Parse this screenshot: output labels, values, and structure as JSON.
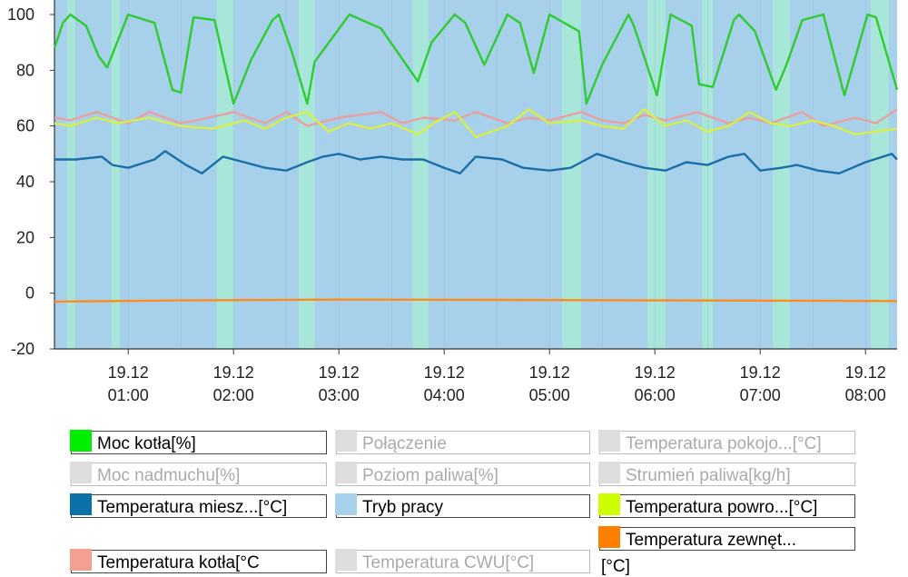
{
  "chart_data": {
    "type": "line",
    "ylim": [
      -20,
      100
    ],
    "yticks": [
      -20,
      0,
      20,
      40,
      60,
      80,
      100
    ],
    "xlim": [
      0.3,
      8.3
    ],
    "xticks": [
      {
        "x": 1,
        "date": "19.12",
        "time": "01:00"
      },
      {
        "x": 2,
        "date": "19.12",
        "time": "02:00"
      },
      {
        "x": 3,
        "date": "19.12",
        "time": "03:00"
      },
      {
        "x": 4,
        "date": "19.12",
        "time": "04:00"
      },
      {
        "x": 5,
        "date": "19.12",
        "time": "05:00"
      },
      {
        "x": 6,
        "date": "19.12",
        "time": "06:00"
      },
      {
        "x": 7,
        "date": "19.12",
        "time": "07:00"
      },
      {
        "x": 8,
        "date": "19.12",
        "time": "08:00"
      }
    ],
    "x_unit": "hours",
    "background_bands": {
      "name": "Tryb pracy",
      "color_a": "#a7d0ea",
      "color_b": "#a8e6da",
      "b_intervals": [
        [
          0.42,
          0.5
        ],
        [
          0.84,
          0.92
        ],
        [
          1.84,
          2.0
        ],
        [
          2.62,
          2.77
        ],
        [
          3.7,
          3.85
        ],
        [
          5.12,
          5.3
        ],
        [
          5.93,
          6.1
        ],
        [
          6.45,
          6.55
        ],
        [
          7.12,
          7.28
        ],
        [
          8.05,
          8.22
        ]
      ]
    },
    "series": [
      {
        "name": "Moc kotła[%]",
        "color": "#2ecc2e",
        "x": [
          0.3,
          0.38,
          0.45,
          0.6,
          0.72,
          0.8,
          1.0,
          1.25,
          1.42,
          1.5,
          1.62,
          1.82,
          2.0,
          2.17,
          2.37,
          2.43,
          2.55,
          2.7,
          2.77,
          3.1,
          3.4,
          3.75,
          3.88,
          4.1,
          4.2,
          4.38,
          4.6,
          4.72,
          4.85,
          5.0,
          5.28,
          5.35,
          5.5,
          5.75,
          5.8,
          6.02,
          6.15,
          6.35,
          6.42,
          6.55,
          6.75,
          6.8,
          6.95,
          7.15,
          7.25,
          7.4,
          7.6,
          7.8,
          8.02,
          8.1,
          8.3
        ],
        "y": [
          88,
          97,
          100,
          96,
          85,
          81,
          100,
          97,
          73,
          72,
          99,
          98,
          68,
          84,
          98,
          100,
          87,
          68,
          83,
          100,
          95,
          76,
          90,
          100,
          97,
          82,
          100,
          97,
          79,
          100,
          94,
          68,
          82,
          100,
          96,
          71,
          100,
          96,
          75,
          74,
          98,
          100,
          94,
          73,
          82,
          98,
          100,
          71,
          100,
          99,
          73
        ]
      },
      {
        "name": "Temperatura kotła[°C]",
        "color": "#e8a0a0",
        "x": [
          0.3,
          0.45,
          0.7,
          1.0,
          1.2,
          1.5,
          1.65,
          2.0,
          2.3,
          2.5,
          2.7,
          3.0,
          3.4,
          3.6,
          3.8,
          4.1,
          4.3,
          4.6,
          4.8,
          5.0,
          5.3,
          5.5,
          5.7,
          5.9,
          6.1,
          6.4,
          6.7,
          6.9,
          7.1,
          7.4,
          7.6,
          7.9,
          8.1,
          8.3
        ],
        "y": [
          63,
          62,
          65,
          61,
          65,
          61,
          62,
          65,
          61,
          65,
          60,
          63,
          65,
          61,
          63,
          62,
          65,
          61,
          63,
          62,
          65,
          62,
          61,
          64,
          62,
          65,
          61,
          63,
          61,
          65,
          60,
          63,
          61,
          66
        ]
      },
      {
        "name": "Temperatura powro...[°C]",
        "color": "#d8ee48",
        "x": [
          0.3,
          0.45,
          0.7,
          0.9,
          1.2,
          1.5,
          1.8,
          2.1,
          2.3,
          2.5,
          2.7,
          2.9,
          3.1,
          3.3,
          3.5,
          3.75,
          3.9,
          4.1,
          4.3,
          4.6,
          4.8,
          5.0,
          5.3,
          5.5,
          5.7,
          5.9,
          6.1,
          6.3,
          6.5,
          6.7,
          6.9,
          7.1,
          7.3,
          7.5,
          7.7,
          7.9,
          8.1,
          8.3
        ],
        "y": [
          61,
          60,
          63,
          61,
          63,
          60,
          59,
          62,
          59,
          63,
          65,
          58,
          61,
          59,
          61,
          57,
          61,
          65,
          56,
          60,
          66,
          61,
          62,
          60,
          59,
          66,
          60,
          62,
          58,
          60,
          65,
          61,
          60,
          62,
          60,
          57,
          58,
          59
        ]
      },
      {
        "name": "Temperatura miesz...[°C]",
        "color": "#1b6fa8",
        "x": [
          0.3,
          0.5,
          0.75,
          0.85,
          1.0,
          1.25,
          1.35,
          1.55,
          1.7,
          1.9,
          2.1,
          2.3,
          2.5,
          2.7,
          2.85,
          3.0,
          3.2,
          3.4,
          3.6,
          3.8,
          4.0,
          4.15,
          4.3,
          4.55,
          4.75,
          5.0,
          5.2,
          5.45,
          5.7,
          5.9,
          6.1,
          6.3,
          6.5,
          6.7,
          6.85,
          7.0,
          7.2,
          7.35,
          7.55,
          7.75,
          8.0,
          8.25,
          8.3
        ],
        "y": [
          48,
          48,
          49,
          46,
          45,
          48,
          51,
          46,
          43,
          49,
          47,
          45,
          44,
          47,
          49,
          50,
          48,
          49,
          48,
          48,
          45,
          43,
          49,
          48,
          45,
          44,
          45,
          50,
          47,
          45,
          44,
          47,
          46,
          49,
          50,
          44,
          45,
          46,
          44,
          43,
          47,
          50,
          48
        ]
      },
      {
        "name": "Temperatura zewnęt...",
        "color": "#ff8c1a",
        "x": [
          0.3,
          1.5,
          3.0,
          4.5,
          6.0,
          7.5,
          8.3
        ],
        "y": [
          -3,
          -2.6,
          -2.3,
          -2.4,
          -2.6,
          -2.7,
          -2.8
        ]
      }
    ],
    "legend": [
      {
        "label": "Moc kotła[%]",
        "color": "#00ee00",
        "active": true
      },
      {
        "label": "Połączenie",
        "color": "#dddddd",
        "active": false
      },
      {
        "label": "Temperatura pokojo...[°C]",
        "color": "#dddddd",
        "active": false
      },
      {
        "label": "Moc nadmuchu[%]",
        "color": "#dddddd",
        "active": false
      },
      {
        "label": "Poziom paliwa[%]",
        "color": "#dddddd",
        "active": false
      },
      {
        "label": "Strumień paliwa[kg/h]",
        "color": "#dddddd",
        "active": false
      },
      {
        "label": "Temperatura miesz...[°C]",
        "color": "#0a72a8",
        "active": true
      },
      {
        "label": "Tryb pracy",
        "color": "#a7d0ea",
        "active": true
      },
      {
        "label": "Temperatura powro...[°C]",
        "color": "#ccff00",
        "active": true
      },
      {
        "label": "Temperatura zewnęt...",
        "color": "#ff8000",
        "active": true,
        "unit": "[°C]"
      },
      {
        "label": "Temperatura kotła[°C",
        "color": "#f4a090",
        "active": true
      },
      {
        "label": "Temperatura CWU[°C]",
        "color": "#dddddd",
        "active": false
      }
    ]
  }
}
